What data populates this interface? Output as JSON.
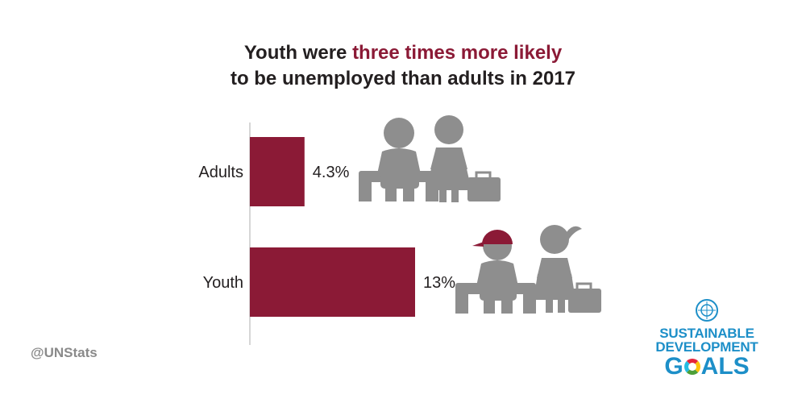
{
  "title": {
    "part1": "Youth were ",
    "highlight": "three times more likely",
    "line2": "to be unemployed than adults in 2017"
  },
  "chart_data": {
    "type": "bar",
    "orientation": "horizontal",
    "categories": [
      "Adults",
      "Youth"
    ],
    "values": [
      4.3,
      13
    ],
    "value_labels": [
      "4.3%",
      "13%"
    ],
    "unit": "%",
    "bar_color": "#8b1a36",
    "grid": false,
    "xlabel": "",
    "ylabel": ""
  },
  "colors": {
    "highlight": "#8b1a36",
    "icon_gray": "#8e8e8e",
    "cap": "#8b1a36",
    "sdg_blue": "#1d8fc8"
  },
  "footer": {
    "handle": "@UNStats"
  },
  "logo": {
    "line1": "SUSTAINABLE",
    "line2": "DEVELOPMENT",
    "line3_g": "G",
    "line3_als": "ALS",
    "icon": "un-emblem-icon"
  }
}
